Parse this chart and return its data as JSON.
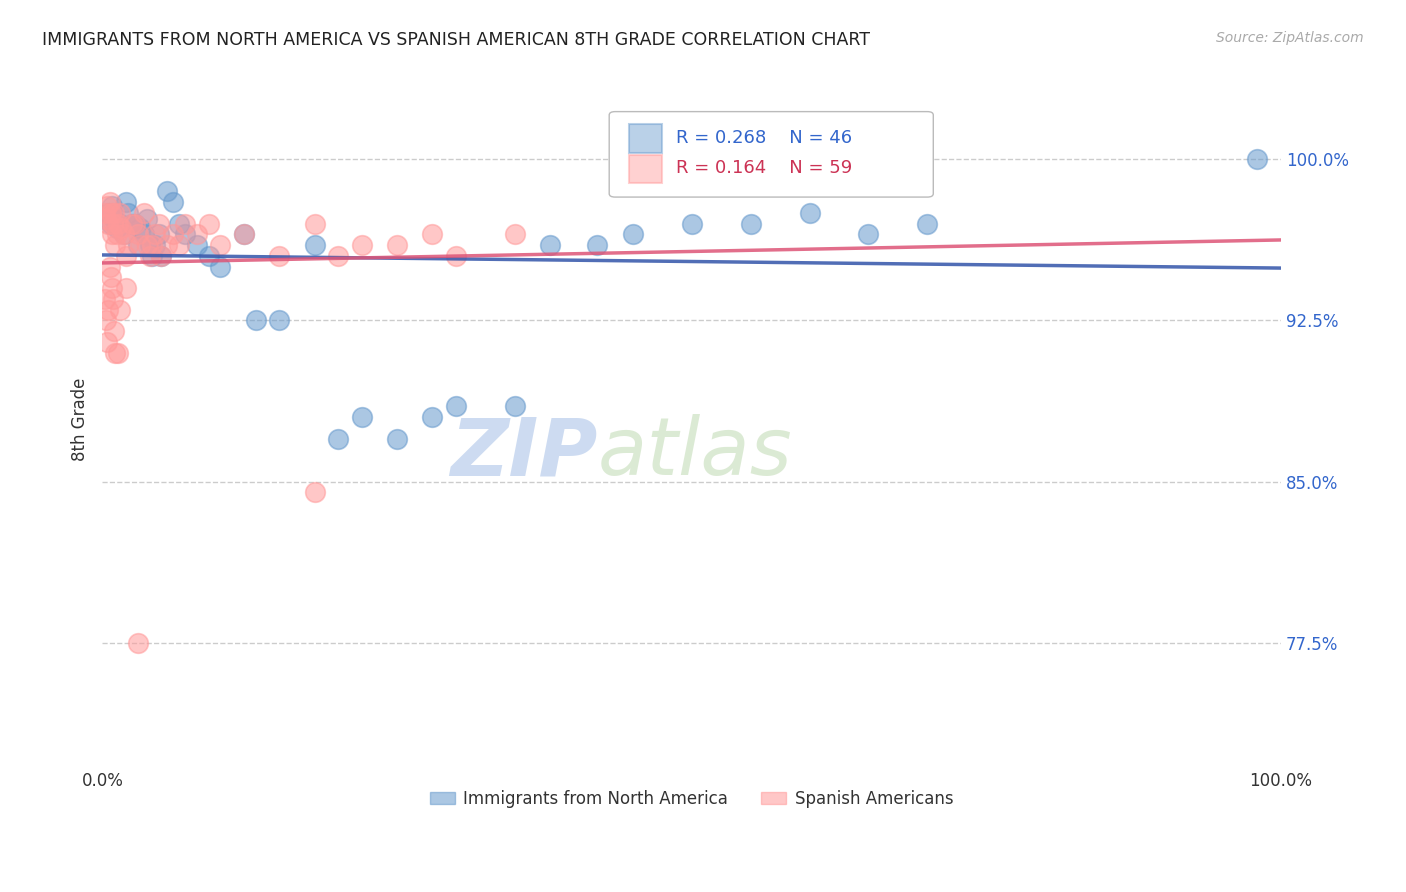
{
  "title": "IMMIGRANTS FROM NORTH AMERICA VS SPANISH AMERICAN 8TH GRADE CORRELATION CHART",
  "source": "Source: ZipAtlas.com",
  "ylabel": "8th Grade",
  "ytick_labels": [
    "77.5%",
    "85.0%",
    "92.5%",
    "100.0%"
  ],
  "ytick_values": [
    0.775,
    0.85,
    0.925,
    1.0
  ],
  "xmin": 0.0,
  "xmax": 1.0,
  "ymin": 0.72,
  "ymax": 1.038,
  "legend_blue_R": 0.268,
  "legend_blue_N": 46,
  "legend_pink_R": 0.164,
  "legend_pink_N": 59,
  "blue_color": "#6699CC",
  "pink_color": "#FF9999",
  "blue_line_color": "#3355AA",
  "pink_line_color": "#DD5577",
  "blue_label": "Immigrants from North America",
  "pink_label": "Spanish Americans",
  "watermark_zip": "ZIP",
  "watermark_atlas": "atlas",
  "grid_color": "#CCCCCC",
  "blue_x": [
    0.005,
    0.008,
    0.01,
    0.012,
    0.015,
    0.018,
    0.02,
    0.022,
    0.025,
    0.028,
    0.03,
    0.032,
    0.035,
    0.038,
    0.04,
    0.042,
    0.045,
    0.048,
    0.05,
    0.055,
    0.06,
    0.065,
    0.07,
    0.08,
    0.09,
    0.1,
    0.12,
    0.13,
    0.15,
    0.18,
    0.2,
    0.22,
    0.25,
    0.28,
    0.3,
    0.35,
    0.38,
    0.42,
    0.45,
    0.5,
    0.55,
    0.6,
    0.65,
    0.7,
    0.98,
    0.007
  ],
  "blue_y": [
    0.975,
    0.978,
    0.972,
    0.968,
    0.97,
    0.965,
    0.98,
    0.975,
    0.97,
    0.97,
    0.96,
    0.968,
    0.965,
    0.972,
    0.96,
    0.955,
    0.96,
    0.965,
    0.955,
    0.985,
    0.98,
    0.97,
    0.965,
    0.96,
    0.955,
    0.95,
    0.965,
    0.925,
    0.925,
    0.96,
    0.87,
    0.88,
    0.87,
    0.88,
    0.885,
    0.885,
    0.96,
    0.96,
    0.965,
    0.97,
    0.97,
    0.975,
    0.965,
    0.97,
    1.0,
    0.97
  ],
  "pink_x": [
    0.002,
    0.003,
    0.004,
    0.005,
    0.006,
    0.007,
    0.008,
    0.009,
    0.01,
    0.011,
    0.012,
    0.013,
    0.015,
    0.016,
    0.018,
    0.02,
    0.022,
    0.025,
    0.028,
    0.03,
    0.032,
    0.035,
    0.038,
    0.04,
    0.042,
    0.045,
    0.048,
    0.05,
    0.055,
    0.06,
    0.065,
    0.07,
    0.08,
    0.09,
    0.1,
    0.12,
    0.15,
    0.18,
    0.2,
    0.22,
    0.25,
    0.28,
    0.3,
    0.35,
    0.18,
    0.002,
    0.003,
    0.004,
    0.005,
    0.006,
    0.007,
    0.008,
    0.009,
    0.01,
    0.011,
    0.013,
    0.015,
    0.02,
    0.03
  ],
  "pink_y": [
    0.975,
    0.972,
    0.978,
    0.97,
    0.98,
    0.975,
    0.965,
    0.97,
    0.975,
    0.96,
    0.965,
    0.97,
    0.975,
    0.968,
    0.965,
    0.955,
    0.96,
    0.97,
    0.97,
    0.965,
    0.96,
    0.975,
    0.96,
    0.955,
    0.96,
    0.965,
    0.97,
    0.955,
    0.96,
    0.965,
    0.96,
    0.97,
    0.965,
    0.97,
    0.96,
    0.965,
    0.955,
    0.97,
    0.955,
    0.96,
    0.96,
    0.965,
    0.955,
    0.965,
    0.845,
    0.935,
    0.925,
    0.915,
    0.93,
    0.95,
    0.945,
    0.94,
    0.935,
    0.92,
    0.91,
    0.91,
    0.93,
    0.94,
    0.775
  ]
}
